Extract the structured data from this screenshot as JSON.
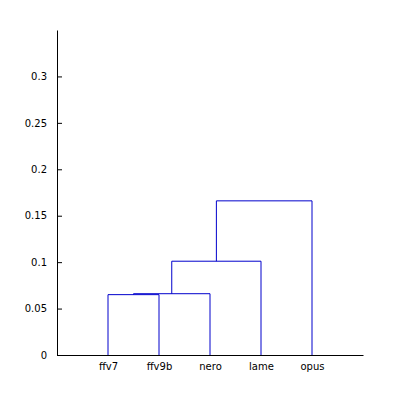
{
  "chart_data": {
    "type": "dendrogram",
    "categories": [
      "ffv7",
      "ffv9b",
      "nero",
      "lame",
      "opus"
    ],
    "links": [
      {
        "a": 0,
        "b": 1,
        "height": 0.065
      },
      {
        "a": 5,
        "b": 2,
        "height": 0.066
      },
      {
        "a": 6,
        "b": 3,
        "height": 0.101
      },
      {
        "a": 7,
        "b": 4,
        "height": 0.166
      }
    ],
    "color": "#0000cc",
    "ylim": [
      0,
      0.35
    ],
    "yticks": [
      0,
      0.05,
      0.1,
      0.15,
      0.2,
      0.25,
      0.3
    ]
  }
}
